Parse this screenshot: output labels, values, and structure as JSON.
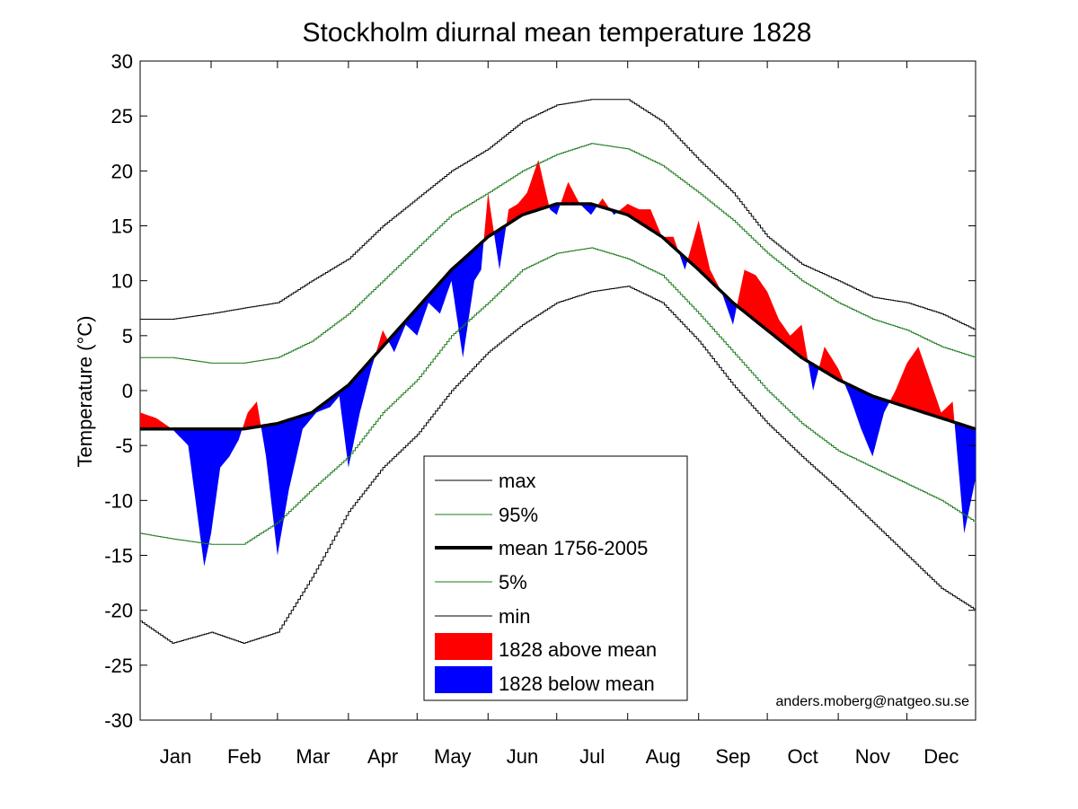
{
  "chart_data": {
    "type": "line",
    "title": "Stockholm diurnal mean temperature 1828",
    "ylabel": "Temperature (°C)",
    "xlabel": "",
    "ylim": [
      -30,
      30
    ],
    "yticks": [
      30,
      25,
      20,
      15,
      10,
      5,
      0,
      -5,
      -10,
      -15,
      -20,
      -25,
      -30
    ],
    "ytick_labels": [
      "30",
      "25",
      "20",
      "15",
      "10",
      "5",
      "0",
      "-5",
      "-10",
      "-15",
      "-20",
      "-25",
      "-30"
    ],
    "xlim_day": [
      1,
      366
    ],
    "months": [
      "Jan",
      "Feb",
      "Mar",
      "Apr",
      "May",
      "Jun",
      "Jul",
      "Aug",
      "Sep",
      "Oct",
      "Nov",
      "Dec"
    ],
    "month_boundaries_day": [
      32,
      61,
      92,
      122,
      153,
      183,
      214,
      245,
      275,
      306,
      336
    ],
    "grid": false,
    "legend_position": "lower-center",
    "credit": "anders.moberg@natgeo.su.se",
    "series": [
      {
        "name": "max",
        "color": "#000000",
        "style": "thin",
        "x": [
          1,
          15,
          32,
          46,
          61,
          76,
          92,
          107,
          122,
          137,
          153,
          168,
          183,
          198,
          214,
          229,
          245,
          260,
          275,
          290,
          306,
          321,
          336,
          351,
          366
        ],
        "values": [
          6.5,
          6.5,
          7,
          7.5,
          8,
          10,
          12,
          15,
          17.5,
          20,
          22,
          24.5,
          26,
          26.5,
          26.5,
          24.5,
          21,
          18,
          14,
          11.5,
          10,
          8.5,
          8,
          7,
          5.5
        ]
      },
      {
        "name": "95%",
        "color": "#1a7a1a",
        "style": "thin",
        "x": [
          1,
          15,
          32,
          46,
          61,
          76,
          92,
          107,
          122,
          137,
          153,
          168,
          183,
          198,
          214,
          229,
          245,
          260,
          275,
          290,
          306,
          321,
          336,
          351,
          366
        ],
        "values": [
          3,
          3,
          2.5,
          2.5,
          3,
          4.5,
          7,
          10,
          13,
          16,
          18,
          20,
          21.5,
          22.5,
          22,
          20.5,
          18,
          15.5,
          12.5,
          10,
          8,
          6.5,
          5.5,
          4,
          3
        ]
      },
      {
        "name": "mean 1756-2005",
        "color": "#000000",
        "style": "thick",
        "x": [
          1,
          15,
          32,
          46,
          61,
          76,
          92,
          107,
          122,
          137,
          153,
          168,
          183,
          198,
          214,
          229,
          245,
          260,
          275,
          290,
          306,
          321,
          336,
          351,
          366
        ],
        "values": [
          -3.5,
          -3.5,
          -3.5,
          -3.5,
          -3,
          -2,
          0.5,
          4,
          7.5,
          11,
          14,
          16,
          17,
          17,
          16,
          14,
          11,
          8,
          5.5,
          3,
          1,
          -0.5,
          -1.5,
          -2.5,
          -3.5
        ]
      },
      {
        "name": "5%",
        "color": "#1a7a1a",
        "style": "thin",
        "x": [
          1,
          15,
          32,
          46,
          61,
          76,
          92,
          107,
          122,
          137,
          153,
          168,
          183,
          198,
          214,
          229,
          245,
          260,
          275,
          290,
          306,
          321,
          336,
          351,
          366
        ],
        "values": [
          -13,
          -13.5,
          -14,
          -14,
          -12,
          -9,
          -6,
          -2,
          1,
          5,
          8,
          11,
          12.5,
          13,
          12,
          10.5,
          7,
          3.5,
          0,
          -3,
          -5.5,
          -7,
          -8.5,
          -10,
          -12
        ]
      },
      {
        "name": "min",
        "color": "#000000",
        "style": "thin",
        "x": [
          1,
          15,
          32,
          46,
          61,
          76,
          92,
          107,
          122,
          137,
          153,
          168,
          183,
          198,
          214,
          229,
          245,
          260,
          275,
          290,
          306,
          321,
          336,
          351,
          366
        ],
        "values": [
          -21,
          -23,
          -22,
          -23,
          -22,
          -17,
          -11,
          -7,
          -4,
          0,
          3.5,
          6,
          8,
          9,
          9.5,
          8,
          4.5,
          0.5,
          -3,
          -6,
          -9,
          -12,
          -15,
          -18,
          -20
        ]
      },
      {
        "name": "1828 above mean",
        "color": "#ff0000",
        "style": "fill"
      },
      {
        "name": "1828 below mean",
        "color": "#0000ff",
        "style": "fill",
        "x": [
          1,
          8,
          15,
          22,
          29,
          32,
          36,
          40,
          44,
          48,
          52,
          56,
          61,
          66,
          72,
          78,
          84,
          88,
          92,
          97,
          102,
          107,
          112,
          117,
          122,
          127,
          132,
          137,
          142,
          147,
          150,
          153,
          158,
          162,
          166,
          170,
          175,
          180,
          183,
          188,
          193,
          198,
          203,
          208,
          214,
          219,
          224,
          229,
          234,
          239,
          245,
          250,
          255,
          260,
          265,
          270,
          275,
          280,
          285,
          290,
          295,
          300,
          306,
          311,
          316,
          321,
          326,
          331,
          336,
          341,
          346,
          351,
          356,
          361,
          366
        ],
        "values": [
          -2,
          -2.5,
          -3.5,
          -5,
          -16,
          -13,
          -7,
          -6,
          -4.5,
          -2,
          -1,
          -6,
          -15,
          -9,
          -3.5,
          -2,
          -1.5,
          -0.5,
          -7,
          -2,
          2,
          5.5,
          3.5,
          6,
          5,
          8,
          7,
          10,
          3,
          10,
          11,
          18,
          11,
          16.5,
          17,
          18,
          21,
          16.5,
          16,
          19,
          17,
          16,
          17.5,
          16,
          17,
          16.5,
          16.5,
          14,
          14,
          11,
          15.5,
          11,
          9,
          6,
          11,
          10.5,
          9,
          6.5,
          5,
          6,
          0,
          4,
          2,
          -0.5,
          -3.5,
          -6,
          -2,
          0,
          2.5,
          4,
          1,
          -2,
          -1,
          -13,
          -8
        ]
      }
    ]
  }
}
